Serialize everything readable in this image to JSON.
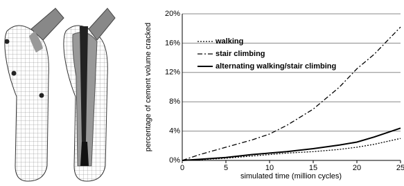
{
  "chart_data": {
    "type": "line",
    "y_label": "percentage of cement volume cracked",
    "x_label": "simulated time (million cycles)",
    "x": [
      0,
      2,
      5,
      8,
      10,
      12,
      15,
      18,
      20,
      22,
      25
    ],
    "series": [
      {
        "name": "walking",
        "color": "#000000",
        "style": "dotted",
        "values": [
          0,
          0.1,
          0.3,
          0.6,
          0.8,
          1.0,
          1.2,
          1.5,
          1.8,
          2.2,
          3.0
        ]
      },
      {
        "name": "stair climbing",
        "color": "#000000",
        "style": "dashdot",
        "values": [
          0,
          0.8,
          1.8,
          2.8,
          3.6,
          4.8,
          7.0,
          10.0,
          12.5,
          14.5,
          18.2
        ]
      },
      {
        "name": "alternating walking/stair climbing",
        "color": "#000000",
        "style": "solid",
        "values": [
          0,
          0.15,
          0.4,
          0.8,
          1.0,
          1.2,
          1.6,
          2.1,
          2.5,
          3.2,
          4.4
        ]
      }
    ],
    "xlim": [
      0,
      25
    ],
    "xticks": [
      0,
      5,
      10,
      15,
      20,
      25
    ],
    "ylim": [
      0,
      20
    ],
    "yticks": [
      {
        "value": 0,
        "label": "0%"
      },
      {
        "value": 4,
        "label": "4%"
      },
      {
        "value": 8,
        "label": "8%"
      },
      {
        "value": 12,
        "label": "12%"
      },
      {
        "value": 16,
        "label": "16%"
      },
      {
        "value": 20,
        "label": "20%"
      }
    ],
    "grid": true,
    "legend": "upper left"
  }
}
